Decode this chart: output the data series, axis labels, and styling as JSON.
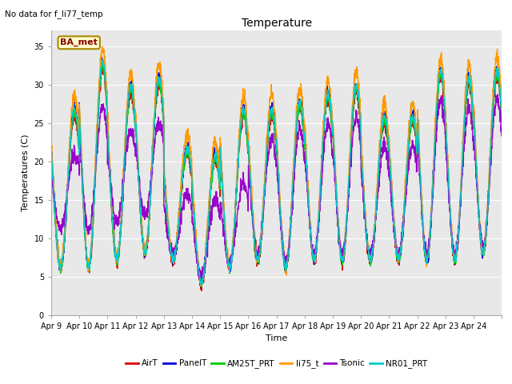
{
  "title": "Temperature",
  "xlabel": "Time",
  "ylabel": "Temperatures (C)",
  "note": "No data for f_li77_temp",
  "station_label": "BA_met",
  "ylim": [
    0,
    37
  ],
  "yticks": [
    0,
    5,
    10,
    15,
    20,
    25,
    30,
    35
  ],
  "date_labels": [
    "Apr 9",
    "Apr 10",
    "Apr 11",
    "Apr 12",
    "Apr 13",
    "Apr 14",
    "Apr 15",
    "Apr 16",
    "Apr 17",
    "Apr 18",
    "Apr 19",
    "Apr 20",
    "Apr 21",
    "Apr 22",
    "Apr 23",
    "Apr 24"
  ],
  "series": {
    "AirT": {
      "color": "#dd0000",
      "lw": 1.0
    },
    "PanelT": {
      "color": "#0000dd",
      "lw": 1.0
    },
    "AM25T_PRT": {
      "color": "#00cc00",
      "lw": 1.0
    },
    "li75_t": {
      "color": "#ff9900",
      "lw": 1.0
    },
    "Tsonic": {
      "color": "#9900cc",
      "lw": 1.0
    },
    "NR01_PRT": {
      "color": "#00cccc",
      "lw": 1.0
    }
  },
  "legend_series": [
    "AirT",
    "PanelT",
    "AM25T_PRT",
    "li75_t",
    "Tsonic",
    "NR01_PRT"
  ],
  "plot_bg": "#e8e8e8"
}
